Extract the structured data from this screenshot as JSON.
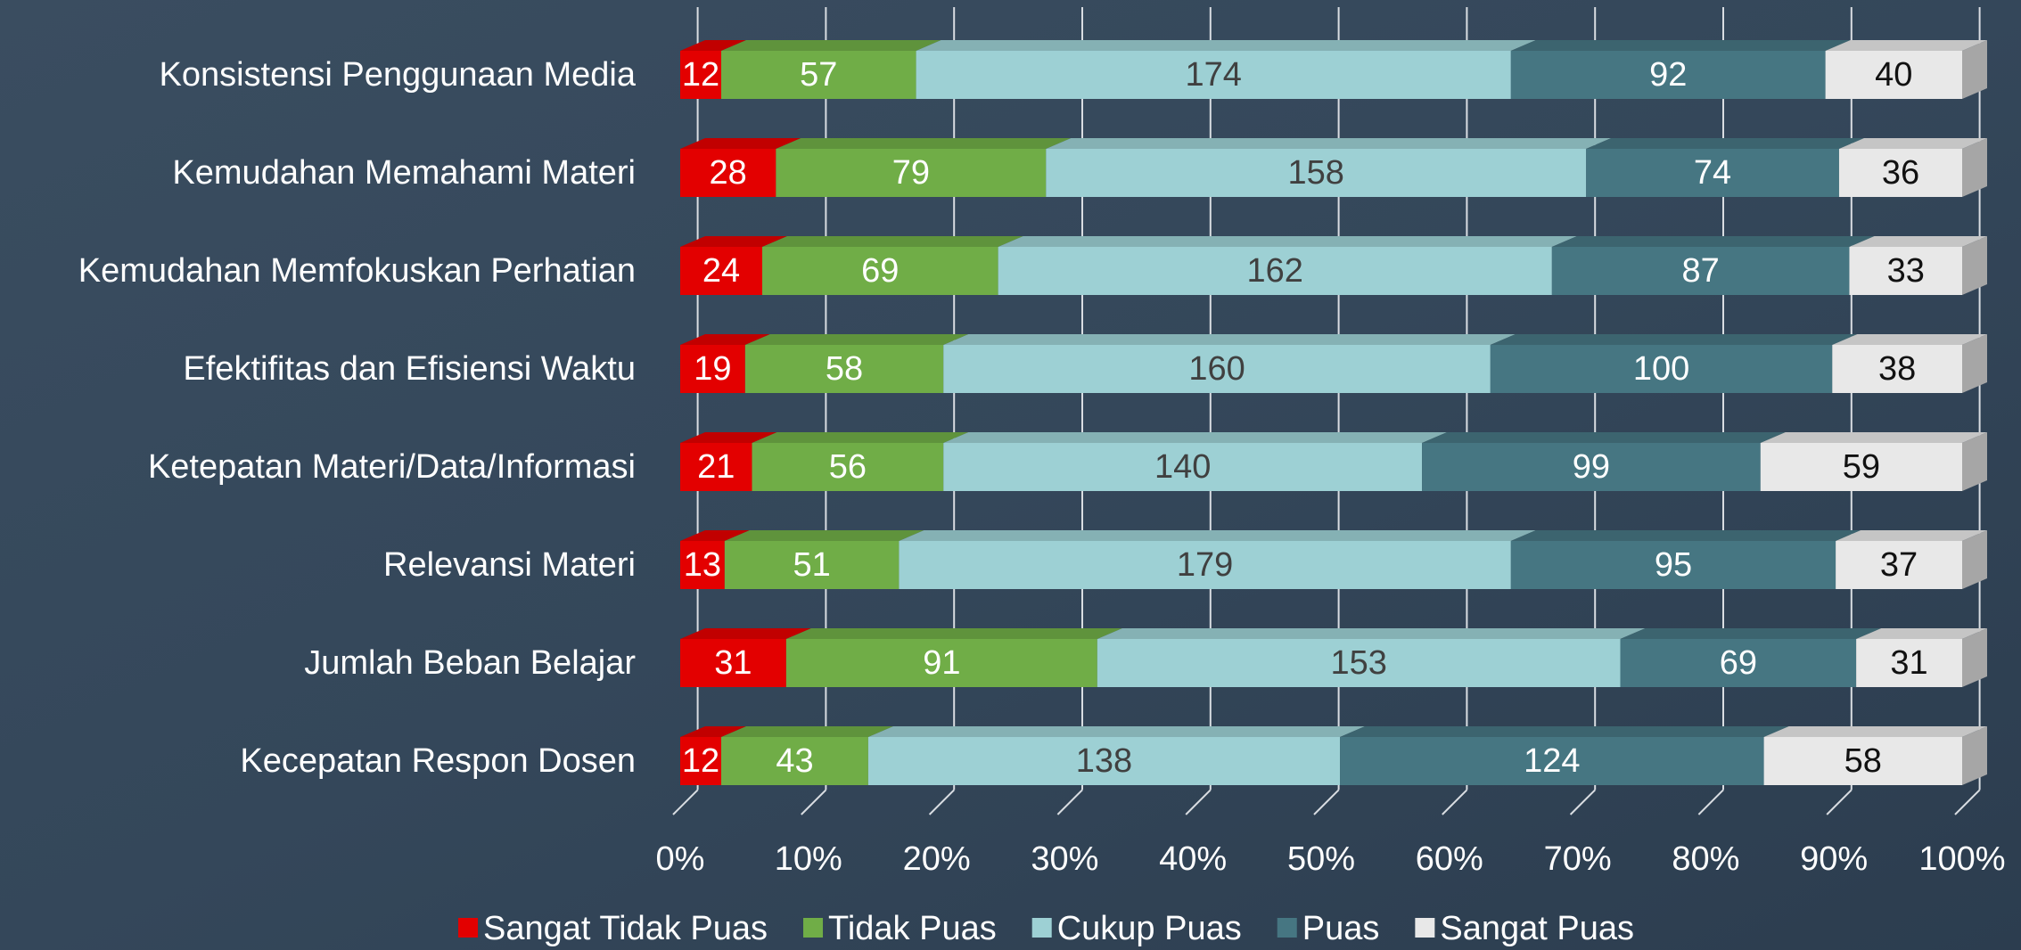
{
  "chart_data": {
    "type": "bar",
    "orientation": "horizontal",
    "stacked": "percent",
    "categories": [
      "Konsistensi Penggunaan Media",
      "Kemudahan Memahami Materi",
      "Kemudahan Memfokuskan Perhatian",
      "Efektifitas dan Efisiensi Waktu",
      "Ketepatan Materi/Data/Informasi",
      "Relevansi Materi",
      "Jumlah Beban Belajar",
      "Kecepatan Respon Dosen"
    ],
    "series": [
      {
        "name": "Sangat Tidak Puas",
        "color": "#e30000",
        "values": [
          12,
          28,
          24,
          19,
          21,
          13,
          31,
          12
        ]
      },
      {
        "name": "Tidak Puas",
        "color": "#70ad47",
        "values": [
          57,
          79,
          69,
          58,
          56,
          51,
          91,
          43
        ]
      },
      {
        "name": "Cukup Puas",
        "color": "#9dd0d4",
        "values": [
          174,
          158,
          162,
          160,
          140,
          179,
          153,
          138
        ]
      },
      {
        "name": "Puas",
        "color": "#467682",
        "values": [
          92,
          74,
          87,
          100,
          99,
          95,
          69,
          124
        ]
      },
      {
        "name": "Sangat Puas",
        "color": "#e8e8e8",
        "values": [
          40,
          36,
          33,
          38,
          59,
          37,
          31,
          58
        ]
      }
    ],
    "xlim": [
      0,
      100
    ],
    "xticks": [
      {
        "value": 0,
        "label": "0%"
      },
      {
        "value": 10,
        "label": "10%"
      },
      {
        "value": 20,
        "label": "20%"
      },
      {
        "value": 30,
        "label": "30%"
      },
      {
        "value": 40,
        "label": "40%"
      },
      {
        "value": 50,
        "label": "50%"
      },
      {
        "value": 60,
        "label": "60%"
      },
      {
        "value": 70,
        "label": "70%"
      },
      {
        "value": 80,
        "label": "80%"
      },
      {
        "value": 90,
        "label": "90%"
      },
      {
        "value": 100,
        "label": "100%"
      }
    ],
    "grid": true,
    "legend": "bottom"
  }
}
